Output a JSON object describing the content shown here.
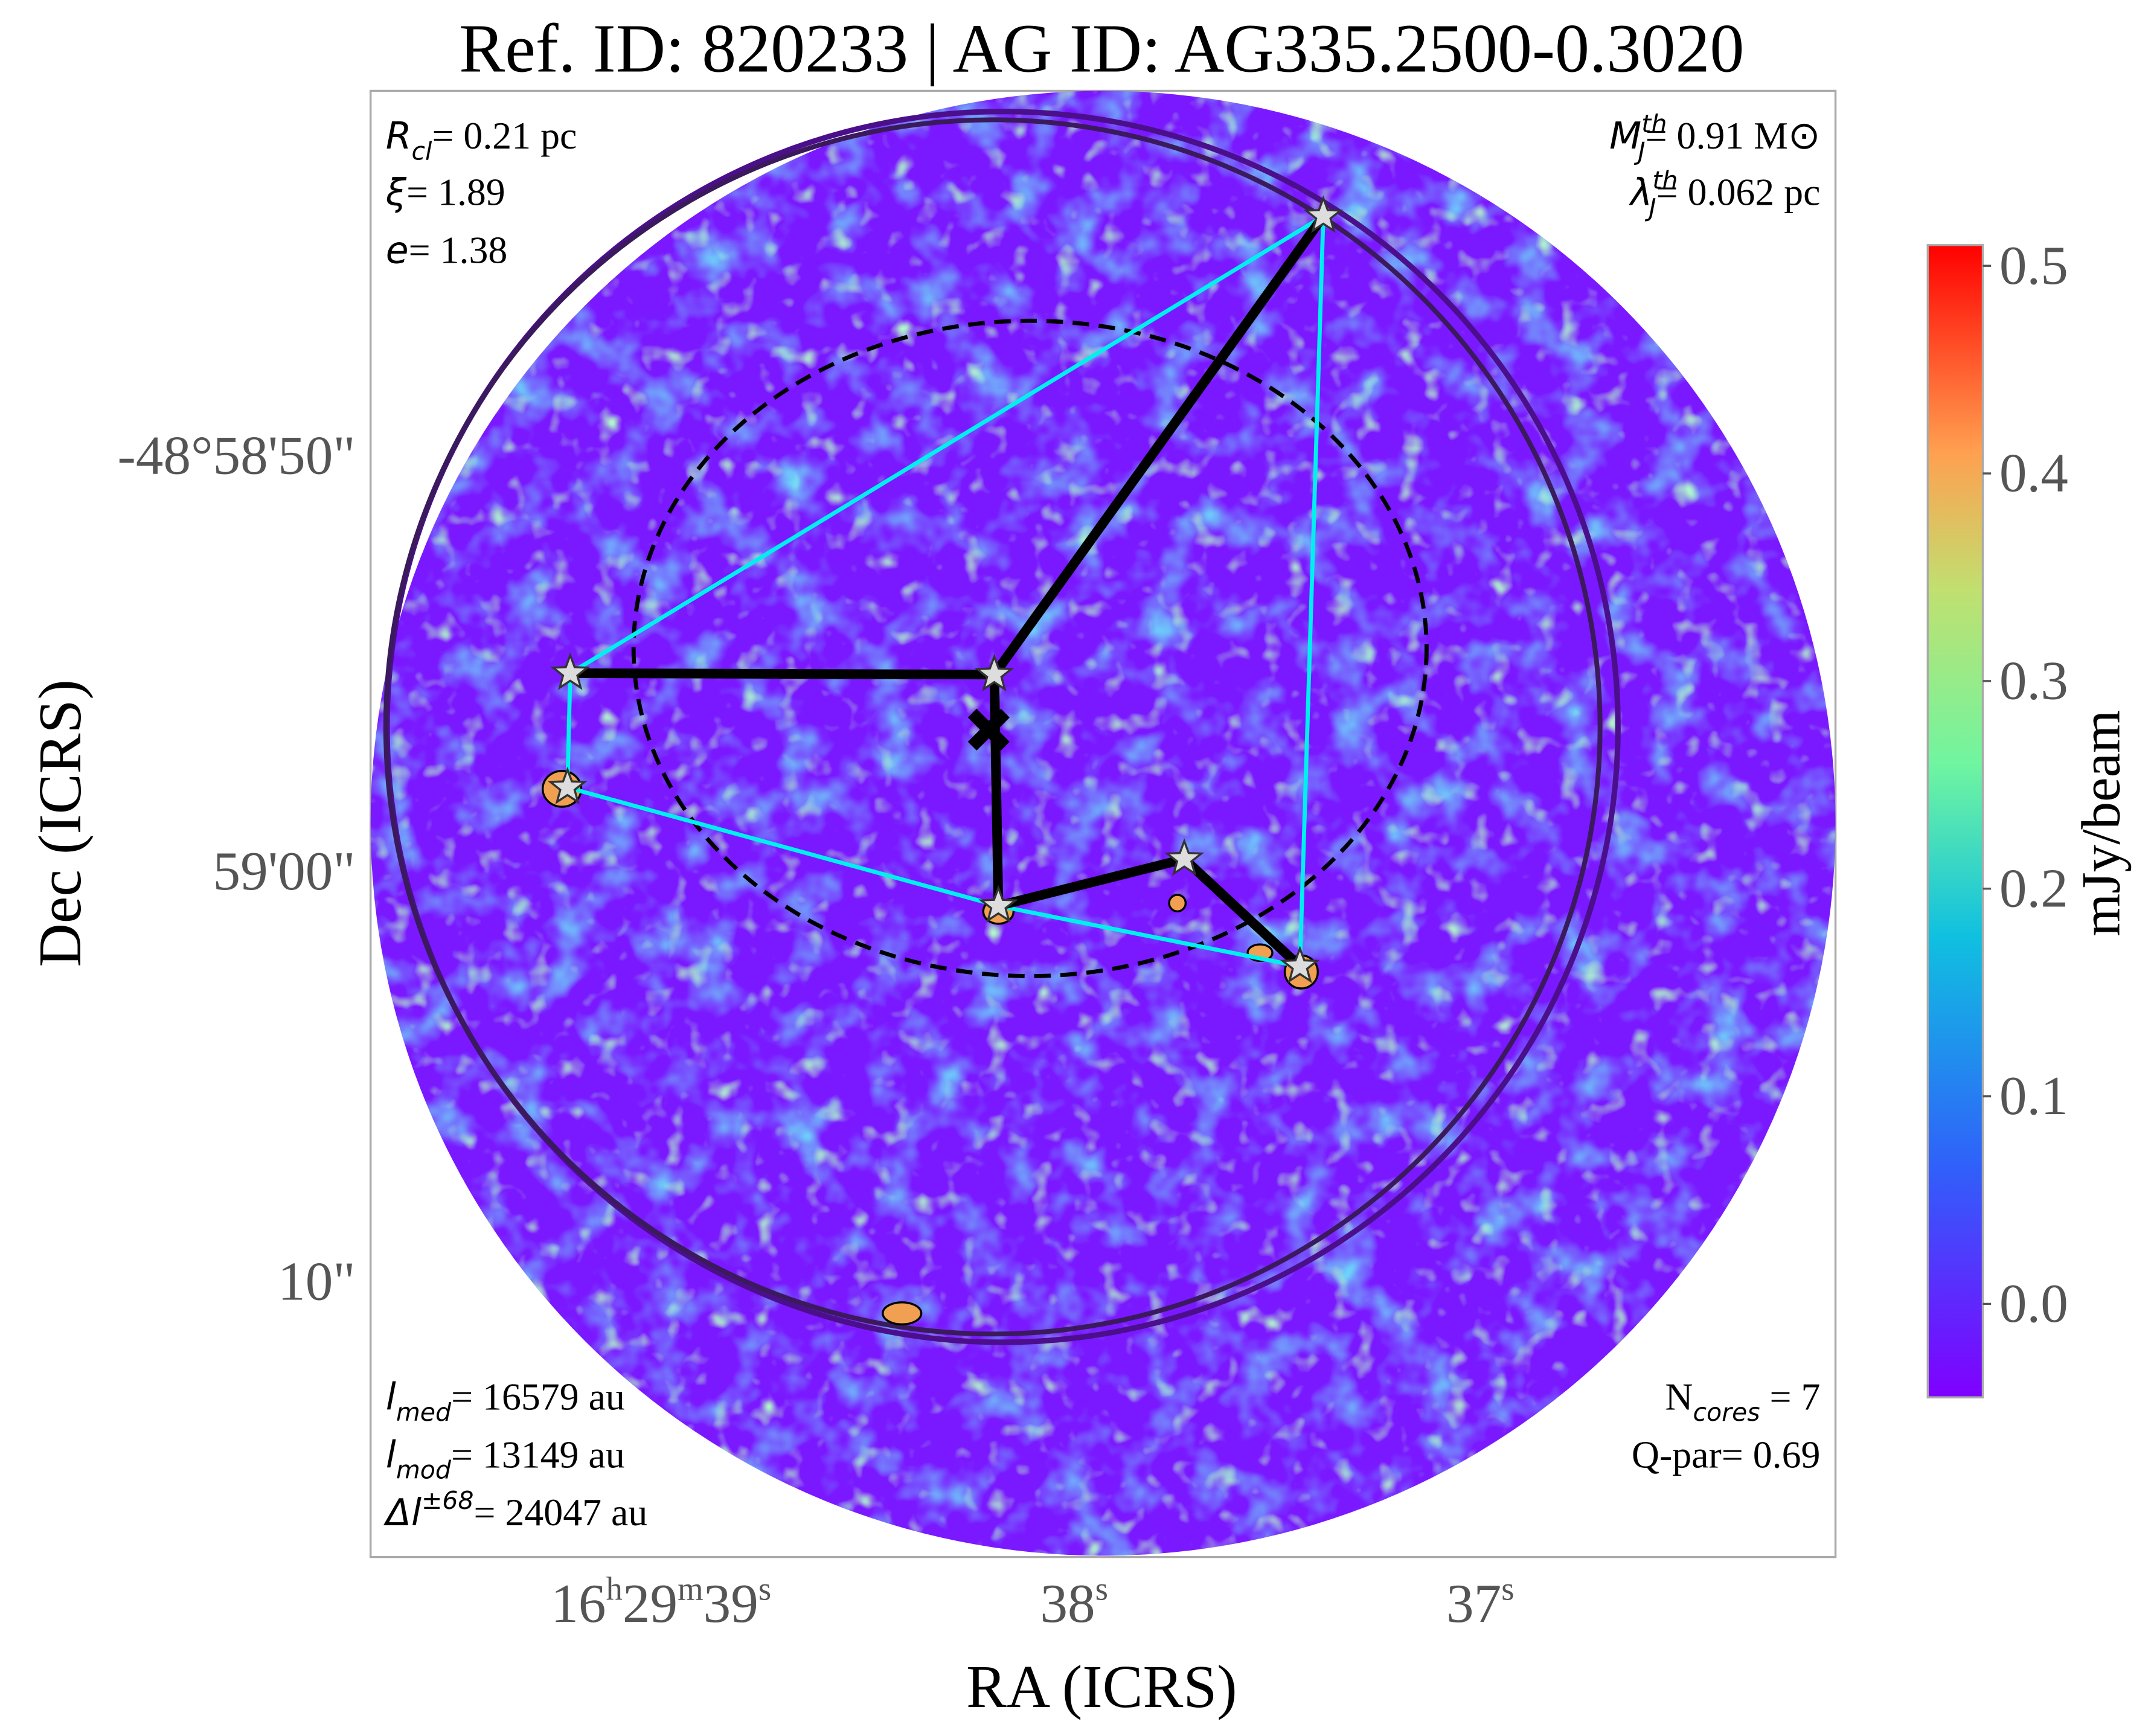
{
  "chart_data": {
    "type": "image",
    "title": "Ref. ID: 820233 | AG ID: AG335.2500-0.3020",
    "x_label": "RA (ICRS)",
    "y_label": "Dec (ICRS)",
    "x_tick_labels": [
      [
        "16",
        "h",
        "29",
        "m",
        "39",
        "s"
      ],
      [
        "38",
        "s"
      ],
      [
        "37",
        "s"
      ]
    ],
    "y_tick_labels": [
      "-48°58'50\"",
      "59'00\"",
      "10\""
    ],
    "colorbar": {
      "label": "mJy/beam",
      "lim": [
        -0.045,
        0.51
      ],
      "ticks": [
        {
          "value": 0,
          "label": "0.0"
        },
        0.1,
        0.2,
        0.3,
        0.4,
        0.5
      ]
    },
    "annotations": {
      "r_cl": {
        "symbol": "R",
        "sub": "cl",
        "text": "= 0.21 pc"
      },
      "xi": {
        "symbol": "ξ",
        "text": "= 1.89"
      },
      "e": {
        "symbol": "e",
        "text": "= 1.38"
      },
      "m_j": {
        "symbol": "M",
        "sub": "J",
        "sup": "th",
        "text": "= 0.91 M⊙"
      },
      "lambda_j": {
        "symbol": "λ",
        "sub": "J",
        "sup": "th",
        "text": "= 0.062 pc"
      },
      "l_med": {
        "symbol": "l",
        "sub": "med",
        "text": "= 16579 au"
      },
      "l_mod": {
        "symbol": "l",
        "sub": "mod",
        "text": "= 13149 au"
      },
      "delta_l": {
        "symbol": "Δl",
        "sup": "±68",
        "text": "= 24047 au"
      },
      "n_cores": {
        "plain": "N",
        "sub": "cores",
        "text": " = 7"
      },
      "q_par": {
        "text": "Q-par= 0.69"
      }
    }
  }
}
